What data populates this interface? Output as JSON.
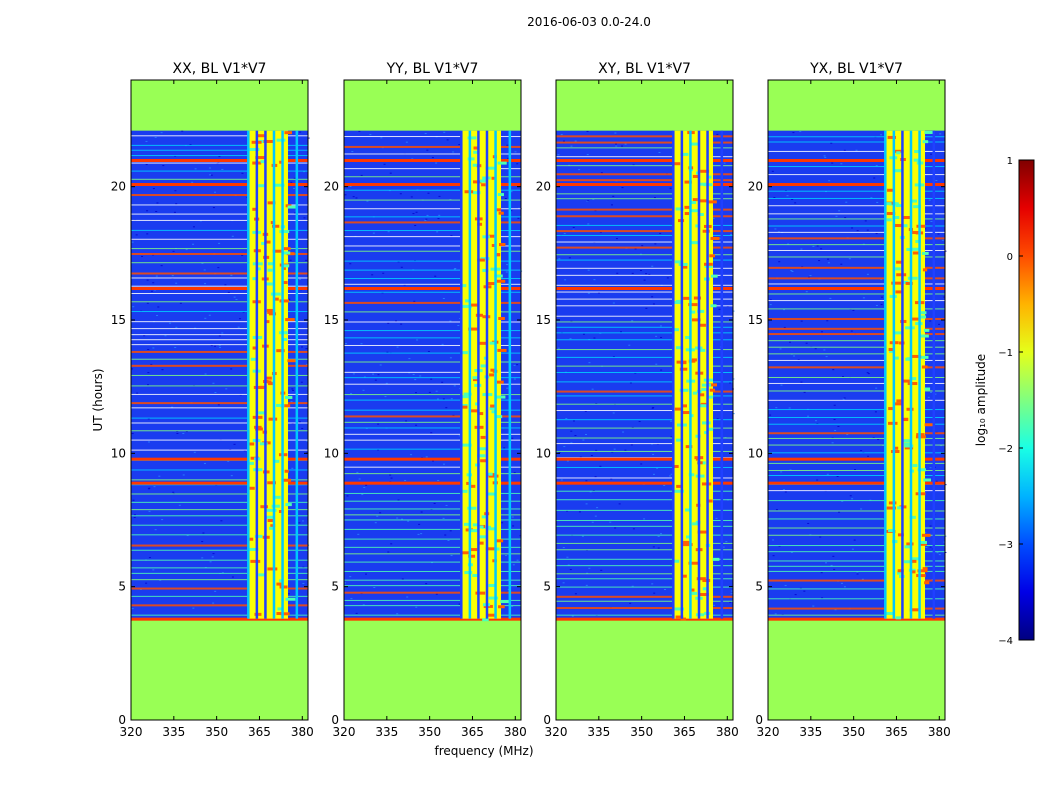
{
  "figure_title": "2016-06-03 0.0-24.0",
  "chart_data": {
    "type": "heatmap",
    "title": "2016-06-03 0.0-24.0",
    "xlabel": "frequency (MHz)",
    "ylabel": "UT (hours)",
    "xlim": [
      320,
      382
    ],
    "ylim": [
      0,
      24
    ],
    "x_ticks": [
      320,
      335,
      350,
      365,
      380
    ],
    "y_ticks": [
      0,
      5,
      10,
      15,
      20
    ],
    "panels": [
      {
        "title": "XX, BL V1*V7",
        "polarization": "XX"
      },
      {
        "title": "YY, BL V1*V7",
        "polarization": "YY"
      },
      {
        "title": "XY, BL V1*V7",
        "polarization": "XY"
      },
      {
        "title": "YX, BL V1*V7",
        "polarization": "YX"
      }
    ],
    "observed_time_range_hours": [
      3.8,
      22.1
    ],
    "rfi_band_mhz": [
      361,
      375
    ],
    "bright_lines_mhz": [
      361,
      364,
      367,
      370,
      373,
      378
    ],
    "colormap": "jet",
    "fill_color": "#99ff55",
    "colorbar": {
      "label": "log₁₀ amplitude",
      "min": -4,
      "max": 1,
      "ticks": [
        "1",
        "0",
        "−1",
        "−2",
        "−3",
        "−4"
      ]
    }
  }
}
